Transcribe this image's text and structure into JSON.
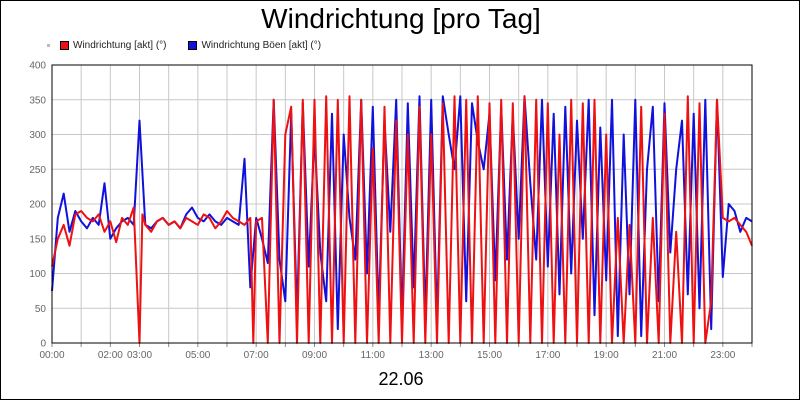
{
  "chart_data": {
    "type": "line",
    "title": "Windrichtung [pro Tag]",
    "xlabel": "22.06",
    "ylabel": "",
    "ylim": [
      0,
      400
    ],
    "y_ticks": [
      "0",
      "50",
      "100",
      "150",
      "200",
      "250",
      "300",
      "350",
      "400"
    ],
    "x_ticks": [
      "00:00",
      "02:00",
      "03:00",
      "05:00",
      "07:00",
      "09:00",
      "11:00",
      "13:00",
      "15:00",
      "17:00",
      "19:00",
      "21:00",
      "23:00"
    ],
    "x_tick_hours": [
      0,
      2,
      3,
      5,
      7,
      9,
      11,
      13,
      15,
      17,
      19,
      21,
      23
    ],
    "xlim_hours": [
      0,
      24
    ],
    "grid": true,
    "legend_position": "top-left",
    "series": [
      {
        "name": "Windrichtung [akt] (°)",
        "color": "#ee1111",
        "x": [
          0.0,
          0.2,
          0.4,
          0.6,
          0.8,
          1.0,
          1.2,
          1.4,
          1.6,
          1.8,
          2.0,
          2.2,
          2.4,
          2.6,
          2.8,
          3.0,
          3.1,
          3.2,
          3.4,
          3.6,
          3.8,
          4.0,
          4.2,
          4.4,
          4.6,
          4.8,
          5.0,
          5.2,
          5.4,
          5.6,
          5.8,
          6.0,
          6.2,
          6.4,
          6.6,
          6.8,
          6.9,
          7.0,
          7.2,
          7.4,
          7.6,
          7.8,
          8.0,
          8.2,
          8.4,
          8.6,
          8.8,
          9.0,
          9.2,
          9.4,
          9.6,
          9.8,
          10.0,
          10.2,
          10.4,
          10.6,
          10.8,
          11.0,
          11.2,
          11.4,
          11.6,
          11.8,
          12.0,
          12.2,
          12.4,
          12.6,
          12.8,
          13.0,
          13.2,
          13.4,
          13.6,
          13.8,
          14.0,
          14.2,
          14.4,
          14.6,
          14.8,
          15.0,
          15.2,
          15.4,
          15.6,
          15.8,
          16.0,
          16.2,
          16.4,
          16.6,
          16.8,
          17.0,
          17.2,
          17.4,
          17.6,
          17.8,
          18.0,
          18.2,
          18.4,
          18.6,
          18.8,
          19.0,
          19.2,
          19.4,
          19.6,
          19.8,
          20.0,
          20.2,
          20.4,
          20.6,
          20.8,
          21.0,
          21.2,
          21.4,
          21.6,
          21.8,
          22.0,
          22.2,
          22.4,
          22.6,
          22.8,
          23.0,
          23.2,
          23.4,
          23.6,
          23.8,
          24.0
        ],
        "values": [
          110,
          150,
          170,
          140,
          185,
          190,
          180,
          175,
          185,
          160,
          175,
          145,
          180,
          170,
          195,
          0,
          185,
          170,
          160,
          175,
          180,
          170,
          175,
          165,
          180,
          175,
          170,
          185,
          180,
          165,
          175,
          190,
          180,
          175,
          170,
          180,
          0,
          175,
          180,
          0,
          350,
          0,
          300,
          340,
          0,
          350,
          0,
          350,
          0,
          355,
          0,
          350,
          0,
          355,
          0,
          350,
          0,
          280,
          0,
          340,
          0,
          320,
          0,
          300,
          0,
          340,
          0,
          300,
          0,
          345,
          0,
          355,
          0,
          350,
          0,
          355,
          0,
          345,
          0,
          350,
          0,
          345,
          0,
          355,
          0,
          350,
          0,
          345,
          0,
          300,
          0,
          350,
          0,
          345,
          0,
          350,
          0,
          300,
          0,
          180,
          0,
          170,
          0,
          340,
          0,
          180,
          0,
          330,
          0,
          160,
          0,
          355,
          0,
          345,
          0,
          60,
          350,
          180,
          175,
          180,
          170,
          160,
          140
        ]
      },
      {
        "name": "Windrichtung Böen [akt] (°)",
        "color": "#1111dd",
        "x": [
          0.0,
          0.2,
          0.4,
          0.6,
          0.8,
          1.0,
          1.2,
          1.4,
          1.6,
          1.8,
          2.0,
          2.2,
          2.4,
          2.6,
          2.8,
          3.0,
          3.2,
          3.4,
          3.6,
          3.8,
          4.0,
          4.2,
          4.4,
          4.6,
          4.8,
          5.0,
          5.2,
          5.4,
          5.6,
          5.8,
          6.0,
          6.2,
          6.4,
          6.6,
          6.8,
          7.0,
          7.2,
          7.4,
          7.6,
          7.8,
          8.0,
          8.2,
          8.4,
          8.6,
          8.8,
          9.0,
          9.2,
          9.4,
          9.6,
          9.8,
          10.0,
          10.2,
          10.4,
          10.6,
          10.8,
          11.0,
          11.2,
          11.4,
          11.6,
          11.8,
          12.0,
          12.2,
          12.4,
          12.6,
          12.8,
          13.0,
          13.2,
          13.4,
          13.6,
          13.8,
          14.0,
          14.2,
          14.4,
          14.6,
          14.8,
          15.0,
          15.2,
          15.4,
          15.6,
          15.8,
          16.0,
          16.2,
          16.4,
          16.6,
          16.8,
          17.0,
          17.2,
          17.4,
          17.6,
          17.8,
          18.0,
          18.2,
          18.4,
          18.6,
          18.8,
          19.0,
          19.2,
          19.4,
          19.6,
          19.8,
          20.0,
          20.2,
          20.4,
          20.6,
          20.8,
          21.0,
          21.2,
          21.4,
          21.6,
          21.8,
          22.0,
          22.2,
          22.4,
          22.6,
          22.8,
          23.0,
          23.2,
          23.4,
          23.6,
          23.8,
          24.0
        ],
        "values": [
          75,
          180,
          215,
          160,
          190,
          175,
          165,
          180,
          170,
          230,
          150,
          165,
          175,
          180,
          170,
          320,
          170,
          165,
          175,
          180,
          170,
          175,
          165,
          185,
          195,
          180,
          175,
          185,
          175,
          170,
          180,
          175,
          170,
          265,
          80,
          180,
          150,
          115,
          350,
          120,
          60,
          330,
          40,
          345,
          110,
          300,
          130,
          60,
          330,
          20,
          300,
          180,
          120,
          350,
          100,
          340,
          40,
          320,
          160,
          350,
          30,
          345,
          80,
          355,
          35,
          350,
          30,
          355,
          300,
          250,
          355,
          60,
          345,
          290,
          250,
          330,
          90,
          340,
          120,
          330,
          150,
          355,
          230,
          120,
          350,
          110,
          330,
          70,
          340,
          100,
          320,
          150,
          350,
          40,
          310,
          90,
          350,
          10,
          300,
          70,
          350,
          10,
          250,
          340,
          60,
          345,
          130,
          250,
          320,
          70,
          330,
          50,
          350,
          20,
          350,
          95,
          200,
          190,
          160,
          180,
          175
        ]
      }
    ]
  }
}
